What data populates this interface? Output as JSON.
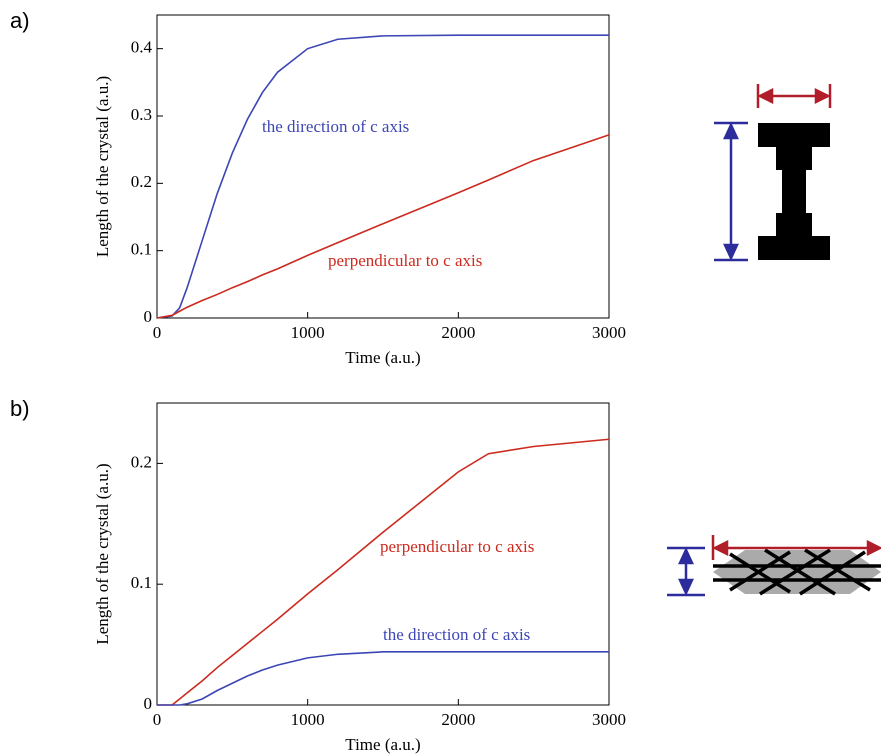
{
  "chart_data": [
    {
      "type": "line",
      "label": "a)",
      "xlabel": "Time (a.u.)",
      "ylabel": "Length of the crystal (a.u.)",
      "x": [
        0,
        100,
        150,
        200,
        300,
        400,
        500,
        600,
        700,
        800,
        1000,
        1200,
        1500,
        2000,
        2200,
        2500,
        3000
      ],
      "series": [
        {
          "name": "the direction of c axis",
          "color": "#3c46b4",
          "values": [
            0,
            0.003,
            0.015,
            0.045,
            0.115,
            0.185,
            0.245,
            0.295,
            0.335,
            0.365,
            0.4,
            0.414,
            0.419,
            0.42,
            0.42,
            0.42,
            0.42
          ]
        },
        {
          "name": "perpendicular to c axis",
          "color": "#cc2a1e",
          "values": [
            0,
            0.004,
            0.01,
            0.016,
            0.026,
            0.035,
            0.045,
            0.054,
            0.064,
            0.073,
            0.093,
            0.112,
            0.14,
            0.186,
            0.205,
            0.234,
            0.272
          ]
        }
      ],
      "xlim": [
        0,
        3000
      ],
      "ylim": [
        0,
        0.45
      ],
      "xticks": [
        0,
        1000,
        2000,
        3000
      ],
      "yticks": [
        0,
        0.1,
        0.2,
        0.3,
        0.4
      ]
    },
    {
      "type": "line",
      "label": "b)",
      "xlabel": "Time (a.u.)",
      "ylabel": "Length of the crystal (a.u.)",
      "x": [
        0,
        100,
        150,
        200,
        300,
        400,
        500,
        600,
        700,
        800,
        1000,
        1200,
        1500,
        2000,
        2200,
        2500,
        3000
      ],
      "series": [
        {
          "name": "perpendicular to c axis",
          "color": "#cc2a1e",
          "values": [
            0,
            0,
            0.005,
            0.01,
            0.02,
            0.031,
            0.041,
            0.051,
            0.061,
            0.071,
            0.092,
            0.112,
            0.143,
            0.193,
            0.208,
            0.214,
            0.22
          ]
        },
        {
          "name": "the direction of c axis",
          "color": "#3c46b4",
          "values": [
            0,
            0,
            0,
            0.001,
            0.005,
            0.012,
            0.018,
            0.024,
            0.029,
            0.033,
            0.039,
            0.042,
            0.044,
            0.044,
            0.044,
            0.044,
            0.044
          ]
        }
      ],
      "xlim": [
        0,
        3000
      ],
      "ylim": [
        0,
        0.25
      ],
      "xticks": [
        0,
        1000,
        2000,
        3000
      ],
      "yticks": [
        0,
        0.1,
        0.2
      ]
    }
  ]
}
